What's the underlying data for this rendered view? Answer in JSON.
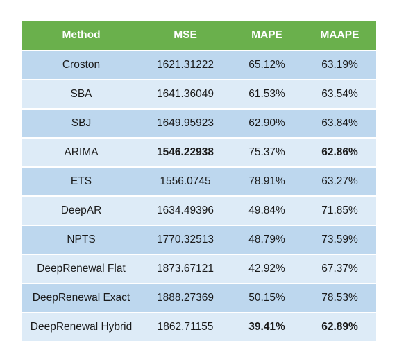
{
  "table": {
    "headers": [
      "Method",
      "MSE",
      "MAPE",
      "MAAPE"
    ],
    "rows": [
      {
        "method": "Croston",
        "mse": "1621.31222",
        "mape": "65.12%",
        "maape": "63.19%",
        "bold": []
      },
      {
        "method": "SBA",
        "mse": "1641.36049",
        "mape": "61.53%",
        "maape": "63.54%",
        "bold": []
      },
      {
        "method": "SBJ",
        "mse": "1649.95923",
        "mape": "62.90%",
        "maape": "63.84%",
        "bold": []
      },
      {
        "method": "ARIMA",
        "mse": "1546.22938",
        "mape": "75.37%",
        "maape": "62.86%",
        "bold": [
          "mse",
          "maape"
        ]
      },
      {
        "method": "ETS",
        "mse": "1556.0745",
        "mape": "78.91%",
        "maape": "63.27%",
        "bold": []
      },
      {
        "method": "DeepAR",
        "mse": "1634.49396",
        "mape": "49.84%",
        "maape": "71.85%",
        "bold": []
      },
      {
        "method": "NPTS",
        "mse": "1770.32513",
        "mape": "48.79%",
        "maape": "73.59%",
        "bold": []
      },
      {
        "method": "DeepRenewal Flat",
        "mse": "1873.67121",
        "mape": "42.92%",
        "maape": "67.37%",
        "bold": []
      },
      {
        "method": "DeepRenewal Exact",
        "mse": "1888.27369",
        "mape": "50.15%",
        "maape": "78.53%",
        "bold": []
      },
      {
        "method": "DeepRenewal Hybrid",
        "mse": "1862.71155",
        "mape": "39.41%",
        "maape": "62.89%",
        "bold": [
          "mape",
          "maape"
        ]
      }
    ],
    "colors": {
      "header_bg": "#6ab04c",
      "header_text": "#ffffff",
      "row_odd": "#bdd7ee",
      "row_even": "#ddebf7"
    }
  }
}
